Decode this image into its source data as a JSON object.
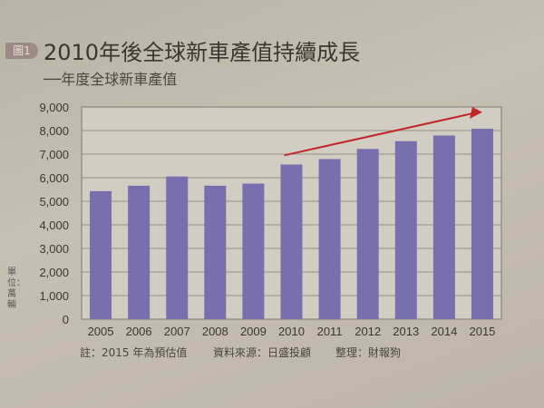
{
  "header": {
    "badge": "圖1",
    "title": "2010年後全球新車產值持續成長",
    "subtitle": "──年度全球新車產值"
  },
  "unit_label": "單位：萬輛",
  "footer": {
    "note": "註：2015 年為預估值",
    "source": "資料來源：日盛投顧",
    "compiled": "整理：財報狗"
  },
  "colors": {
    "bar": "#7a6fae",
    "arrow": "#c0262a",
    "grid": "#7d7a72"
  },
  "chart_data": {
    "type": "bar",
    "title": "2010年後全球新車產值持續成長",
    "ylabel": "單位：萬輛",
    "categories": [
      "2005",
      "2006",
      "2007",
      "2008",
      "2009",
      "2010",
      "2011",
      "2012",
      "2013",
      "2014",
      "2015"
    ],
    "values": [
      5430,
      5660,
      6050,
      5660,
      5750,
      6560,
      6790,
      7220,
      7550,
      7790,
      8080
    ],
    "ylim": [
      0,
      9000
    ],
    "yticks": [
      "0",
      "1,000",
      "2,000",
      "3,000",
      "4,000",
      "5,000",
      "6,000",
      "7,000",
      "8,000",
      "9,000"
    ],
    "grid": true,
    "annotation": "upward trend arrow from 2010 to 2015"
  }
}
